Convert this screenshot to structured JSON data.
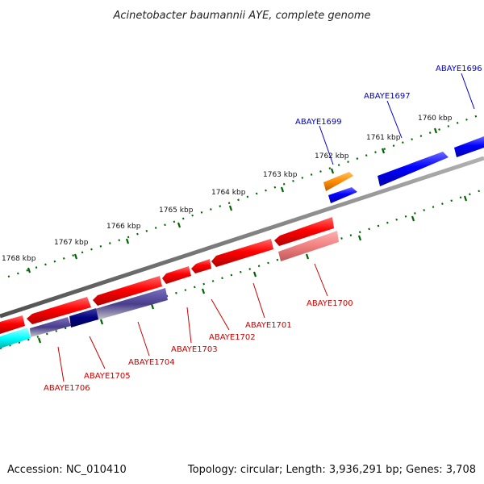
{
  "title": "Acinetobacter baumannii AYE, complete genome",
  "footer": {
    "accession": "Accession: NC_010410",
    "info": "Topology: circular; Length: 3,936,291 bp; Genes: 3,708"
  },
  "colors": {
    "backbone": "#808080",
    "forward_gene": "#0000ff",
    "reverse_gene": "#ff0000",
    "reverse_gene_light": "#f08080",
    "other_gene": "#ff8c00",
    "navy_gene": "#000080",
    "slate_gene": "#483d8b",
    "cyan_gene": "#00ffff",
    "tick_marks": "#006400"
  },
  "ruler": {
    "labels": [
      "1760 kbp",
      "1761 kbp",
      "1762 kbp",
      "1763 kbp",
      "1764 kbp",
      "1765 kbp",
      "1766 kbp",
      "1767 kbp",
      "1768 kbp"
    ]
  },
  "genes": {
    "top": [
      "ABAYE1696",
      "ABAYE1697",
      "ABAYE1699"
    ],
    "bottom": [
      "ABAYE1700",
      "ABAYE1701",
      "ABAYE1702",
      "ABAYE1703",
      "ABAYE1704",
      "ABAYE1705",
      "ABAYE1706"
    ]
  }
}
